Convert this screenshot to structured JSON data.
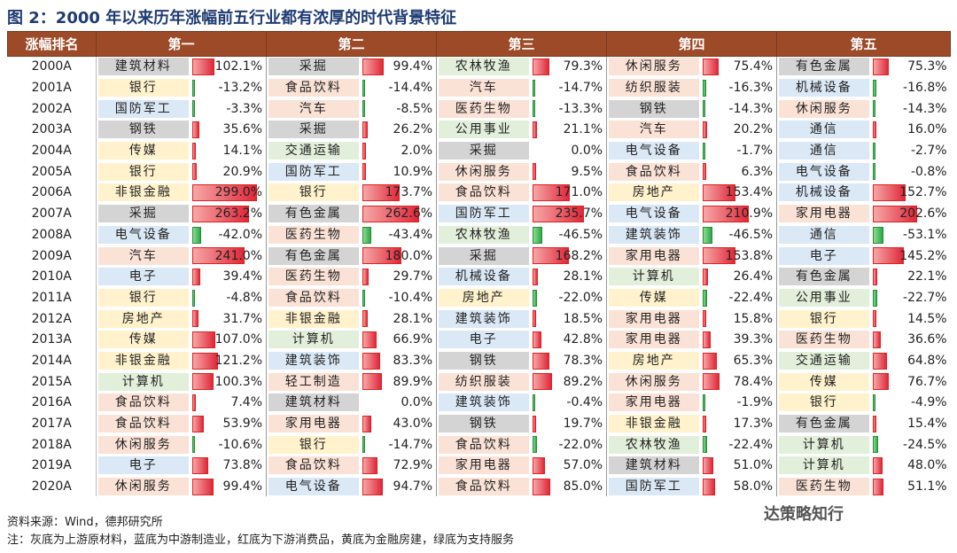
{
  "title": "图 2：2000 年以来历年涨幅前五行业都有浓厚的时代背景特征",
  "headers": [
    "涨幅排名",
    "第一",
    "第二",
    "第三",
    "第四",
    "第五"
  ],
  "rows": [
    {
      "year": "2000A",
      "cells": [
        [
          "建筑材料",
          "102.1%",
          "up",
          102.1
        ],
        [
          "采掘",
          "99.4%",
          "up",
          99.4
        ],
        [
          "农林牧渔",
          "79.3%",
          "sup",
          79.3
        ],
        [
          "休闲服务",
          "75.4%",
          "down",
          75.4
        ],
        [
          "有色金属",
          "75.3%",
          "up",
          75.3
        ]
      ]
    },
    {
      "year": "2001A",
      "cells": [
        [
          "银行",
          "-13.2%",
          "fin",
          -13.2
        ],
        [
          "食品饮料",
          "-14.4%",
          "down",
          -14.4
        ],
        [
          "汽车",
          "-14.7%",
          "down",
          -14.7
        ],
        [
          "纺织服装",
          "-16.3%",
          "down",
          -16.3
        ],
        [
          "机械设备",
          "-16.8%",
          "mid",
          -16.8
        ]
      ]
    },
    {
      "year": "2002A",
      "cells": [
        [
          "国防军工",
          "-3.3%",
          "mid",
          -3.3
        ],
        [
          "汽车",
          "-8.5%",
          "down",
          -8.5
        ],
        [
          "医药生物",
          "-13.3%",
          "down",
          -13.3
        ],
        [
          "钢铁",
          "-14.3%",
          "up",
          -14.3
        ],
        [
          "休闲服务",
          "-14.3%",
          "down",
          -14.3
        ]
      ]
    },
    {
      "year": "2003A",
      "cells": [
        [
          "钢铁",
          "35.6%",
          "up",
          35.6
        ],
        [
          "采掘",
          "26.2%",
          "up",
          26.2
        ],
        [
          "公用事业",
          "21.1%",
          "sup",
          21.1
        ],
        [
          "汽车",
          "20.2%",
          "down",
          20.2
        ],
        [
          "通信",
          "16.0%",
          "mid",
          16.0
        ]
      ]
    },
    {
      "year": "2004A",
      "cells": [
        [
          "传媒",
          "14.1%",
          "fin",
          14.1
        ],
        [
          "交通运输",
          "2.0%",
          "sup",
          2.0
        ],
        [
          "采掘",
          "0.0%",
          "up",
          0.0
        ],
        [
          "电气设备",
          "-1.7%",
          "mid",
          -1.7
        ],
        [
          "通信",
          "-2.7%",
          "mid",
          -2.7
        ]
      ]
    },
    {
      "year": "2005A",
      "cells": [
        [
          "银行",
          "20.9%",
          "fin",
          20.9
        ],
        [
          "国防军工",
          "10.9%",
          "mid",
          10.9
        ],
        [
          "休闲服务",
          "9.5%",
          "down",
          9.5
        ],
        [
          "食品饮料",
          "6.3%",
          "down",
          6.3
        ],
        [
          "电气设备",
          "-0.8%",
          "mid",
          -0.8
        ]
      ]
    },
    {
      "year": "2006A",
      "cells": [
        [
          "非银金融",
          "299.0%",
          "fin",
          299.0
        ],
        [
          "银行",
          "173.7%",
          "fin",
          173.7
        ],
        [
          "食品饮料",
          "171.0%",
          "down",
          171.0
        ],
        [
          "房地产",
          "153.4%",
          "fin",
          153.4
        ],
        [
          "机械设备",
          "152.7%",
          "mid",
          152.7
        ]
      ]
    },
    {
      "year": "2007A",
      "cells": [
        [
          "采掘",
          "263.2%",
          "up",
          263.2
        ],
        [
          "有色金属",
          "262.6%",
          "up",
          262.6
        ],
        [
          "国防军工",
          "235.7%",
          "mid",
          235.7
        ],
        [
          "电气设备",
          "210.9%",
          "mid",
          210.9
        ],
        [
          "家用电器",
          "202.6%",
          "down",
          202.6
        ]
      ]
    },
    {
      "year": "2008A",
      "cells": [
        [
          "电气设备",
          "-42.0%",
          "mid",
          -42.0
        ],
        [
          "医药生物",
          "-43.4%",
          "down",
          -43.4
        ],
        [
          "农林牧渔",
          "-46.5%",
          "sup",
          -46.5
        ],
        [
          "建筑装饰",
          "-46.5%",
          "mid",
          -46.5
        ],
        [
          "通信",
          "-53.1%",
          "mid",
          -53.1
        ]
      ]
    },
    {
      "year": "2009A",
      "cells": [
        [
          "汽车",
          "241.0%",
          "down",
          241.0
        ],
        [
          "有色金属",
          "180.0%",
          "up",
          180.0
        ],
        [
          "采掘",
          "168.2%",
          "up",
          168.2
        ],
        [
          "家用电器",
          "153.8%",
          "down",
          153.8
        ],
        [
          "电子",
          "145.2%",
          "mid",
          145.2
        ]
      ]
    },
    {
      "year": "2010A",
      "cells": [
        [
          "电子",
          "39.4%",
          "mid",
          39.4
        ],
        [
          "医药生物",
          "29.7%",
          "down",
          29.7
        ],
        [
          "机械设备",
          "28.1%",
          "mid",
          28.1
        ],
        [
          "计算机",
          "26.4%",
          "sup",
          26.4
        ],
        [
          "有色金属",
          "22.1%",
          "up",
          22.1
        ]
      ]
    },
    {
      "year": "2011A",
      "cells": [
        [
          "银行",
          "-4.8%",
          "fin",
          -4.8
        ],
        [
          "食品饮料",
          "-10.4%",
          "down",
          -10.4
        ],
        [
          "房地产",
          "-22.0%",
          "fin",
          -22.0
        ],
        [
          "传媒",
          "-22.4%",
          "fin",
          -22.4
        ],
        [
          "公用事业",
          "-22.7%",
          "sup",
          -22.7
        ]
      ]
    },
    {
      "year": "2012A",
      "cells": [
        [
          "房地产",
          "31.7%",
          "fin",
          31.7
        ],
        [
          "非银金融",
          "28.1%",
          "fin",
          28.1
        ],
        [
          "建筑装饰",
          "18.5%",
          "mid",
          18.5
        ],
        [
          "家用电器",
          "15.8%",
          "down",
          15.8
        ],
        [
          "银行",
          "14.5%",
          "fin",
          14.5
        ]
      ]
    },
    {
      "year": "2013A",
      "cells": [
        [
          "传媒",
          "107.0%",
          "fin",
          107.0
        ],
        [
          "计算机",
          "66.9%",
          "sup",
          66.9
        ],
        [
          "电子",
          "42.8%",
          "mid",
          42.8
        ],
        [
          "家用电器",
          "39.3%",
          "down",
          39.3
        ],
        [
          "医药生物",
          "36.6%",
          "down",
          36.6
        ]
      ]
    },
    {
      "year": "2014A",
      "cells": [
        [
          "非银金融",
          "121.2%",
          "fin",
          121.2
        ],
        [
          "建筑装饰",
          "83.3%",
          "mid",
          83.3
        ],
        [
          "钢铁",
          "78.3%",
          "up",
          78.3
        ],
        [
          "房地产",
          "65.3%",
          "fin",
          65.3
        ],
        [
          "交通运输",
          "64.8%",
          "sup",
          64.8
        ]
      ]
    },
    {
      "year": "2015A",
      "cells": [
        [
          "计算机",
          "100.3%",
          "sup",
          100.3
        ],
        [
          "轻工制造",
          "89.9%",
          "down",
          89.9
        ],
        [
          "纺织服装",
          "89.2%",
          "down",
          89.2
        ],
        [
          "休闲服务",
          "78.4%",
          "down",
          78.4
        ],
        [
          "传媒",
          "76.7%",
          "fin",
          76.7
        ]
      ]
    },
    {
      "year": "2016A",
      "cells": [
        [
          "食品饮料",
          "7.4%",
          "down",
          7.4
        ],
        [
          "建筑材料",
          "0.0%",
          "up",
          0.0
        ],
        [
          "建筑装饰",
          "-0.4%",
          "mid",
          -0.4
        ],
        [
          "家用电器",
          "-1.9%",
          "down",
          -1.9
        ],
        [
          "银行",
          "-4.9%",
          "fin",
          -4.9
        ]
      ]
    },
    {
      "year": "2017A",
      "cells": [
        [
          "食品饮料",
          "53.9%",
          "down",
          53.9
        ],
        [
          "家用电器",
          "43.0%",
          "down",
          43.0
        ],
        [
          "钢铁",
          "19.7%",
          "up",
          19.7
        ],
        [
          "非银金融",
          "17.3%",
          "fin",
          17.3
        ],
        [
          "有色金属",
          "15.4%",
          "up",
          15.4
        ]
      ]
    },
    {
      "year": "2018A",
      "cells": [
        [
          "休闲服务",
          "-10.6%",
          "down",
          -10.6
        ],
        [
          "银行",
          "-14.7%",
          "fin",
          -14.7
        ],
        [
          "食品饮料",
          "-22.0%",
          "down",
          -22.0
        ],
        [
          "农林牧渔",
          "-22.4%",
          "sup",
          -22.4
        ],
        [
          "计算机",
          "-24.5%",
          "sup",
          -24.5
        ]
      ]
    },
    {
      "year": "2019A",
      "cells": [
        [
          "电子",
          "73.8%",
          "mid",
          73.8
        ],
        [
          "食品饮料",
          "72.9%",
          "down",
          72.9
        ],
        [
          "家用电器",
          "57.0%",
          "down",
          57.0
        ],
        [
          "建筑材料",
          "51.0%",
          "up",
          51.0
        ],
        [
          "计算机",
          "48.0%",
          "sup",
          48.0
        ]
      ]
    },
    {
      "year": "2020A",
      "cells": [
        [
          "休闲服务",
          "99.4%",
          "down",
          99.4
        ],
        [
          "电气设备",
          "94.7%",
          "mid",
          94.7
        ],
        [
          "食品饮料",
          "85.0%",
          "down",
          85.0
        ],
        [
          "国防军工",
          "58.0%",
          "mid",
          58.0
        ],
        [
          "医药生物",
          "51.1%",
          "down",
          51.1
        ]
      ]
    }
  ],
  "source": "资料来源：Wind，德邦研究所",
  "note": "注：灰底为上游原材料，蓝底为中游制造业，红底为下游消费品，黄底为金融房建，绿底为支持服务",
  "watermark": "达策略知行",
  "colors": {
    "header": "#9c4a28",
    "up": "#d4d4d4",
    "mid": "#dbe8f6",
    "down": "#fbe2d6",
    "fin": "#fff2cc",
    "sup": "#e2efda",
    "bar_pos": "#e0283a",
    "bar_neg": "#2aa84a"
  }
}
